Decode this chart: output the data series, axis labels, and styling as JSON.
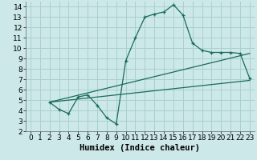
{
  "background_color": "#cce8e8",
  "grid_color": "#aad0d0",
  "line_color": "#1a6b5a",
  "marker_color": "#1a6b5a",
  "xlabel": "Humidex (Indice chaleur)",
  "xlim": [
    -0.5,
    23.5
  ],
  "ylim": [
    2,
    14.5
  ],
  "xticks": [
    0,
    1,
    2,
    3,
    4,
    5,
    6,
    7,
    8,
    9,
    10,
    11,
    12,
    13,
    14,
    15,
    16,
    17,
    18,
    19,
    20,
    21,
    22,
    23
  ],
  "yticks": [
    2,
    3,
    4,
    5,
    6,
    7,
    8,
    9,
    10,
    11,
    12,
    13,
    14
  ],
  "curve1_x": [
    2,
    3,
    4,
    5,
    6,
    7,
    8,
    9,
    10,
    11,
    12,
    13,
    14,
    15,
    16,
    17,
    18,
    19,
    20,
    21,
    22,
    23
  ],
  "curve1_y": [
    4.8,
    4.1,
    3.7,
    5.3,
    5.5,
    4.5,
    3.3,
    2.7,
    8.8,
    11.0,
    13.0,
    13.3,
    13.5,
    14.2,
    13.2,
    10.5,
    9.8,
    9.6,
    9.6,
    9.6,
    9.5,
    7.1
  ],
  "curve2_x": [
    2,
    23
  ],
  "curve2_y": [
    4.8,
    6.9
  ],
  "curve3_x": [
    2,
    23
  ],
  "curve3_y": [
    4.8,
    9.5
  ],
  "fontsize_label": 7.5,
  "fontsize_tick": 6.5
}
